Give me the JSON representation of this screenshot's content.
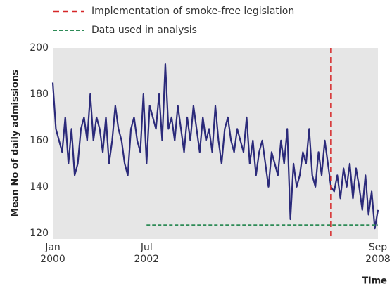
{
  "chart_data": {
    "type": "line",
    "y_label": "Mean No of daily admissions",
    "x_label": "Time",
    "xlim": [
      "2000-01",
      "2008-09"
    ],
    "xticks": [
      {
        "value": "2000-01",
        "label": "Jan\n2000"
      },
      {
        "value": "2002-07",
        "label": "Jul\n2002"
      },
      {
        "value": "2008-09",
        "label": "Sep\n2008"
      }
    ],
    "ylim": [
      117.5,
      200
    ],
    "yticks": [
      120,
      140,
      160,
      180,
      200
    ],
    "x": [
      "2000-01",
      "2000-02",
      "2000-03",
      "2000-04",
      "2000-05",
      "2000-06",
      "2000-07",
      "2000-08",
      "2000-09",
      "2000-10",
      "2000-11",
      "2000-12",
      "2001-01",
      "2001-02",
      "2001-03",
      "2001-04",
      "2001-05",
      "2001-06",
      "2001-07",
      "2001-08",
      "2001-09",
      "2001-10",
      "2001-11",
      "2001-12",
      "2002-01",
      "2002-02",
      "2002-03",
      "2002-04",
      "2002-05",
      "2002-06",
      "2002-07",
      "2002-08",
      "2002-09",
      "2002-10",
      "2002-11",
      "2002-12",
      "2003-01",
      "2003-02",
      "2003-03",
      "2003-04",
      "2003-05",
      "2003-06",
      "2003-07",
      "2003-08",
      "2003-09",
      "2003-10",
      "2003-11",
      "2003-12",
      "2004-01",
      "2004-02",
      "2004-03",
      "2004-04",
      "2004-05",
      "2004-06",
      "2004-07",
      "2004-08",
      "2004-09",
      "2004-10",
      "2004-11",
      "2004-12",
      "2005-01",
      "2005-02",
      "2005-03",
      "2005-04",
      "2005-05",
      "2005-06",
      "2005-07",
      "2005-08",
      "2005-09",
      "2005-10",
      "2005-11",
      "2005-12",
      "2006-01",
      "2006-02",
      "2006-03",
      "2006-04",
      "2006-05",
      "2006-06",
      "2006-07",
      "2006-08",
      "2006-09",
      "2006-10",
      "2006-11",
      "2006-12",
      "2007-01",
      "2007-02",
      "2007-03",
      "2007-04",
      "2007-05",
      "2007-06",
      "2007-07",
      "2007-08",
      "2007-09",
      "2007-10",
      "2007-11",
      "2007-12",
      "2008-01",
      "2008-02",
      "2008-03",
      "2008-04",
      "2008-05",
      "2008-06",
      "2008-07",
      "2008-08",
      "2008-09"
    ],
    "series": [
      {
        "color": "#2b2a7a",
        "values": [
          185,
          165,
          160,
          155,
          170,
          150,
          165,
          145,
          150,
          165,
          170,
          160,
          180,
          160,
          170,
          165,
          155,
          170,
          150,
          160,
          175,
          165,
          160,
          150,
          145,
          165,
          170,
          160,
          155,
          180,
          150,
          175,
          170,
          165,
          180,
          160,
          193,
          165,
          170,
          160,
          175,
          165,
          155,
          170,
          160,
          175,
          165,
          155,
          170,
          160,
          165,
          155,
          175,
          160,
          150,
          165,
          170,
          160,
          155,
          165,
          160,
          155,
          170,
          150,
          160,
          145,
          155,
          160,
          150,
          140,
          155,
          150,
          145,
          160,
          150,
          165,
          126,
          150,
          140,
          145,
          155,
          150,
          165,
          145,
          140,
          155,
          145,
          160,
          150,
          140,
          138,
          145,
          135,
          148,
          140,
          150,
          135,
          148,
          140,
          130,
          145,
          128,
          138,
          122,
          130
        ]
      }
    ],
    "reference_lines": [
      {
        "name": "Implementation of smoke-free legislation",
        "color": "#d62728",
        "x": "2007-06"
      },
      {
        "name": "Data used in analysis",
        "color": "#2e8b57",
        "y": 123.5,
        "x_start": "2002-07",
        "x_end": "2008-09"
      }
    ]
  }
}
